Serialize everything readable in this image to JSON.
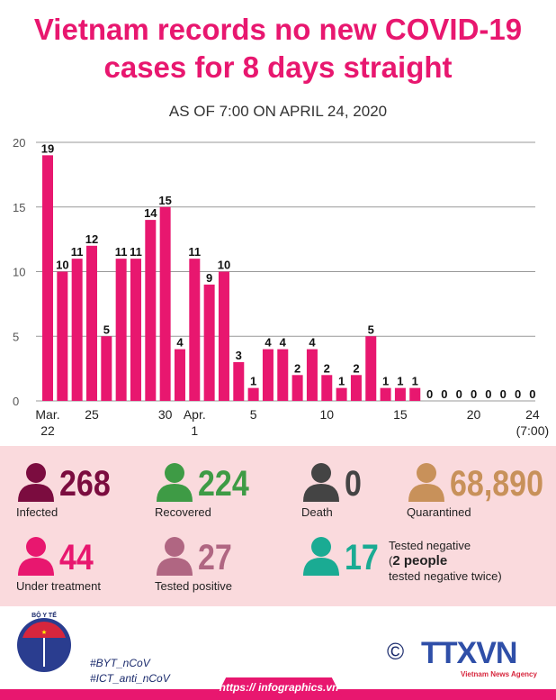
{
  "title_line1": "Vietnam records no new COVID-19",
  "title_line2": "cases for 8 days straight",
  "subtitle": "AS OF 7:00 ON APRIL 24, 2020",
  "chart_data": {
    "type": "bar",
    "color": "#e8176f",
    "ylim": [
      0,
      20
    ],
    "yticks": [
      "0",
      "5",
      "10",
      "15",
      "20"
    ],
    "grid": true,
    "categories": [
      "Mar 22",
      "Mar 23",
      "Mar 24",
      "Mar 25",
      "Mar 26",
      "Mar 27",
      "Mar 28",
      "Mar 29",
      "Mar 30",
      "Mar 31",
      "Apr 1",
      "Apr 2",
      "Apr 3",
      "Apr 4",
      "Apr 5",
      "Apr 6",
      "Apr 7",
      "Apr 8",
      "Apr 9",
      "Apr 10",
      "Apr 11",
      "Apr 12",
      "Apr 13",
      "Apr 14",
      "Apr 15",
      "Apr 16",
      "Apr 17",
      "Apr 18",
      "Apr 19",
      "Apr 20",
      "Apr 21",
      "Apr 22",
      "Apr 23",
      "Apr 24"
    ],
    "values": [
      19,
      10,
      11,
      12,
      5,
      11,
      11,
      14,
      15,
      4,
      11,
      9,
      10,
      3,
      1,
      4,
      4,
      2,
      4,
      2,
      1,
      2,
      5,
      1,
      1,
      1,
      0,
      0,
      0,
      0,
      0,
      0,
      0,
      0
    ],
    "xticks": [
      {
        "index": 0,
        "line1": "Mar.",
        "line2": "22"
      },
      {
        "index": 3,
        "line1": "25"
      },
      {
        "index": 8,
        "line1": "30"
      },
      {
        "index": 10,
        "line1": "Apr.",
        "line2": "1"
      },
      {
        "index": 14,
        "line1": "5"
      },
      {
        "index": 19,
        "line1": "10"
      },
      {
        "index": 24,
        "line1": "15"
      },
      {
        "index": 29,
        "line1": "20"
      },
      {
        "index": 33,
        "line1": "24",
        "line2": "(7:00)"
      }
    ]
  },
  "stats": [
    {
      "value": "268",
      "label": "Infected",
      "color": "#7b0c3f"
    },
    {
      "value": "224",
      "label": "Recovered",
      "color": "#3e9b45"
    },
    {
      "value": "0",
      "label": "Death",
      "color": "#444444"
    },
    {
      "value": "68,890",
      "label": "Quarantined",
      "color": "#c8915a"
    },
    {
      "value": "44",
      "label": "Under treatment",
      "color": "#e8176f"
    },
    {
      "value": "27",
      "label": "Tested positive",
      "color": "#b06682"
    },
    {
      "value": "17",
      "label": "Tested negative",
      "label2a": "(",
      "label2b": "2 people",
      "label3": "tested negative twice)",
      "color": "#1aab93"
    }
  ],
  "footer": {
    "hashtag1": "#BYT_nCoV",
    "hashtag2": "#ICT_anti_nCoV",
    "url": "https:// infographics.vn",
    "moh_logo": "BỘ Y TẾ MINISTRY OF HEALTH",
    "agency_logo": "TTXVN",
    "agency_sub": "Vietnam News Agency",
    "copyright": "©"
  }
}
